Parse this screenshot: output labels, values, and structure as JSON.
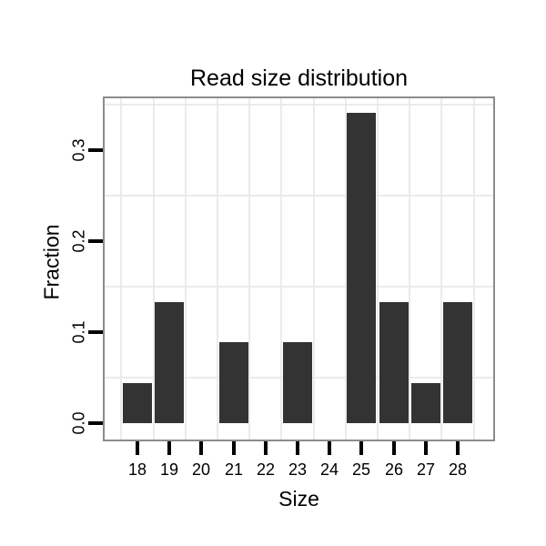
{
  "chart_data": {
    "type": "bar",
    "title": "Read size distribution",
    "xlabel": "Size",
    "ylabel": "Fraction",
    "categories": [
      "18",
      "19",
      "20",
      "21",
      "22",
      "23",
      "24",
      "25",
      "26",
      "27",
      "28"
    ],
    "values": [
      0.044,
      0.133,
      0,
      0.089,
      0,
      0.089,
      0,
      0.341,
      0.133,
      0.044,
      0.133
    ],
    "yticks": [
      "0.0",
      "0.1",
      "0.2",
      "0.3"
    ],
    "ytick_values": [
      0.0,
      0.1,
      0.2,
      0.3
    ],
    "ylim": [
      -0.018,
      0.357
    ],
    "minor_grid_y": [
      0.05,
      0.15,
      0.25,
      0.35
    ],
    "grid": "minor-gridlines-only",
    "legend": "none",
    "bar_color": "#333333",
    "panel_border_color": "#8c8c8c",
    "grid_color": "#ebebeb",
    "tick_color": "#000000",
    "text_color": "#000000",
    "background": "#ffffff"
  }
}
